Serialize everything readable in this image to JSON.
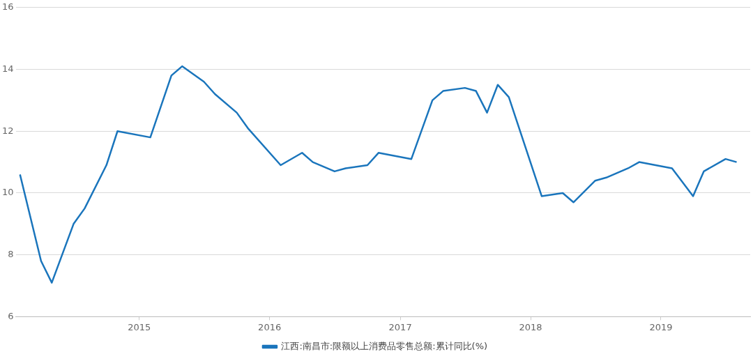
{
  "chart_data": {
    "type": "line",
    "x": [
      "2014-02",
      "2014-04",
      "2014-05",
      "2014-07",
      "2014-08",
      "2014-10",
      "2014-11",
      "2015-02",
      "2015-04",
      "2015-05",
      "2015-07",
      "2015-08",
      "2015-10",
      "2015-11",
      "2016-02",
      "2016-04",
      "2016-05",
      "2016-07",
      "2016-08",
      "2016-10",
      "2016-11",
      "2017-02",
      "2017-04",
      "2017-05",
      "2017-07",
      "2017-08",
      "2017-09",
      "2017-10",
      "2017-11",
      "2018-02",
      "2018-04",
      "2018-05",
      "2018-07",
      "2018-08",
      "2018-10",
      "2018-11",
      "2019-02",
      "2019-04",
      "2019-05",
      "2019-07",
      "2019-08"
    ],
    "series": [
      {
        "name": "江西:南昌市:限额以上消费品零售总额:累计同比(%)",
        "color": "#1a75bc",
        "values": [
          10.6,
          7.8,
          7.1,
          9.0,
          9.5,
          10.9,
          12.0,
          11.8,
          13.8,
          14.1,
          13.6,
          13.2,
          12.6,
          12.1,
          10.9,
          11.3,
          11.0,
          10.7,
          10.8,
          10.9,
          11.3,
          11.1,
          13.0,
          13.3,
          13.4,
          13.3,
          12.6,
          13.5,
          13.1,
          9.9,
          10.0,
          9.7,
          10.4,
          10.5,
          10.8,
          11.0,
          10.8,
          9.9,
          10.7,
          11.1,
          11.0
        ]
      }
    ],
    "xlim": [
      "2014-01-20",
      "2019-09-08"
    ],
    "xticks": [
      "2015",
      "2016",
      "2017",
      "2018",
      "2019"
    ],
    "ylim": [
      6,
      16
    ],
    "yticks": [
      6,
      8,
      10,
      12,
      14,
      16
    ],
    "grid": "y",
    "legend": "bottom",
    "marker": "none",
    "line_style": "solid"
  }
}
